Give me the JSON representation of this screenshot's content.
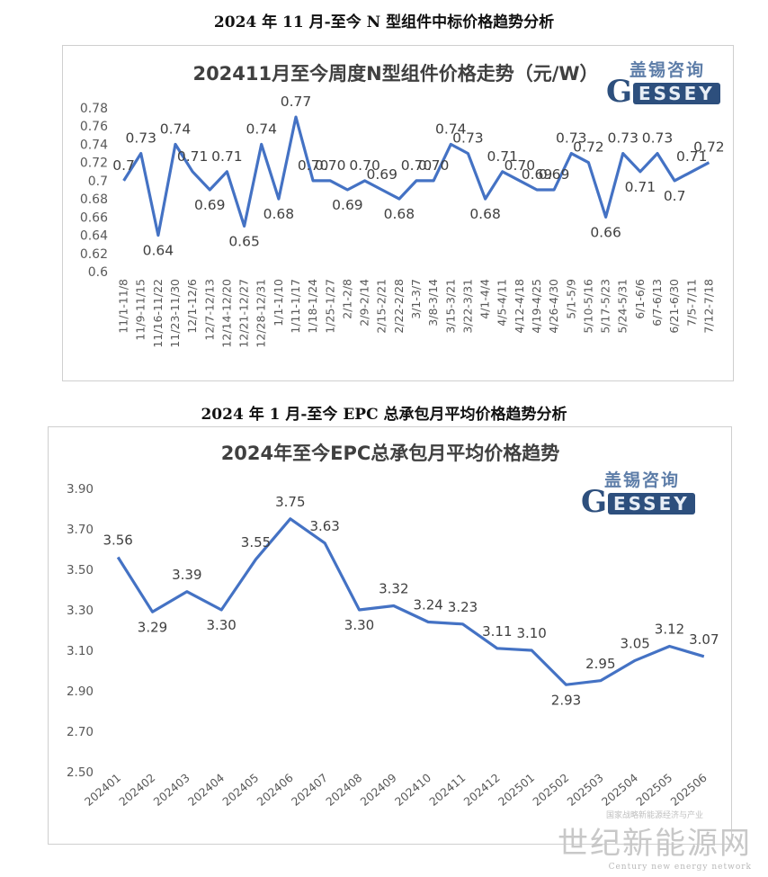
{
  "sections": [
    {
      "title": "2024 年 11 月-至今 N 型组件中标价格趋势分析"
    },
    {
      "title": "2024 年 1 月-至今 EPC 总承包月平均价格趋势分析"
    }
  ],
  "logo": {
    "cn": "盖锡咨询",
    "en": "ESSEY",
    "letter": "G"
  },
  "watermark": {
    "cn": "世纪新能源网",
    "en": "Century new energy network",
    "overlay": "国家战略新能源经济与产业"
  },
  "colors": {
    "line": "#4472c4",
    "axis_text": "#595959",
    "label": "#404040",
    "logo_dark": "#2d4f7d"
  },
  "chart_data": [
    {
      "type": "line",
      "title": "202411月至今周度N型组件价格走势（元/W）",
      "xlabel": "",
      "ylabel": "",
      "ylim": [
        0.6,
        0.78
      ],
      "yticks": [
        "0.6",
        "0.62",
        "0.64",
        "0.66",
        "0.68",
        "0.7",
        "0.72",
        "0.74",
        "0.76",
        "0.78"
      ],
      "grid": false,
      "categories": [
        "11/1-11/8",
        "11/9-11/15",
        "11/16-11/22",
        "11/23-11/30",
        "12/1-12/6",
        "12/7-12/13",
        "12/14-12/20",
        "12/21-12/27",
        "12/28-12/31",
        "1/1-1/10",
        "1/11-1/17",
        "1/18-1/24",
        "1/25-1/27",
        "2/1-2/8",
        "2/9-2/14",
        "2/15-2/21",
        "2/22-2/28",
        "3/1-3/7",
        "3/8-3/14",
        "3/15-3/21",
        "3/22-3/31",
        "4/1-4/4",
        "4/5-4/11",
        "4/12-4/18",
        "4/19-4/25",
        "4/26-4/30",
        "5/1-5/9",
        "5/10-5/16",
        "5/17-5/23",
        "5/24-5/31",
        "6/1-6/6",
        "6/7-6/13",
        "6/21-6/30",
        "7/5-7/11",
        "7/12-7/18"
      ],
      "values": [
        0.7,
        0.73,
        0.64,
        0.74,
        0.71,
        0.69,
        0.71,
        0.65,
        0.74,
        0.68,
        0.77,
        0.7,
        0.7,
        0.69,
        0.7,
        0.69,
        0.68,
        0.7,
        0.7,
        0.74,
        0.73,
        0.68,
        0.71,
        0.7,
        0.69,
        0.69,
        0.73,
        0.72,
        0.66,
        0.73,
        0.71,
        0.73,
        0.7,
        0.71,
        0.72
      ],
      "labels": [
        "0.7",
        "0.73",
        "0.64",
        "0.74",
        "0.71",
        "0.69",
        "0.71",
        "0.65",
        "0.74",
        "0.68",
        "0.77",
        "0.70",
        "0.70",
        "0.69",
        "0.70",
        "0.69",
        "0.68",
        "0.70",
        "0.70",
        "0.74",
        "0.73",
        "0.68",
        "0.71",
        "0.70",
        "0.69",
        "0.69",
        "0.73",
        "0.72",
        "0.66",
        "0.73",
        "0.71",
        "0.73",
        "0.7",
        "0.71",
        "0.72"
      ]
    },
    {
      "type": "line",
      "title": "2024年至今EPC总承包月平均价格趋势",
      "xlabel": "",
      "ylabel": "",
      "ylim": [
        2.5,
        3.9
      ],
      "yticks": [
        "2.50",
        "2.70",
        "2.90",
        "3.10",
        "3.30",
        "3.50",
        "3.70",
        "3.90"
      ],
      "grid": false,
      "categories": [
        "202401",
        "202402",
        "202403",
        "202404",
        "202405",
        "202406",
        "202407",
        "202408",
        "202409",
        "202410",
        "202411",
        "202412",
        "202501",
        "202502",
        "202503",
        "202504",
        "202505",
        "202506"
      ],
      "values": [
        3.56,
        3.29,
        3.39,
        3.3,
        3.55,
        3.75,
        3.63,
        3.3,
        3.32,
        3.24,
        3.23,
        3.11,
        3.1,
        2.93,
        2.95,
        3.05,
        3.12,
        3.07
      ],
      "labels": [
        "3.56",
        "3.29",
        "3.39",
        "3.30",
        "3.55",
        "3.75",
        "3.63",
        "3.30",
        "3.32",
        "3.24",
        "3.23",
        "3.11",
        "3.10",
        "2.93",
        "2.95",
        "3.05",
        "3.12",
        "3.07"
      ]
    }
  ]
}
